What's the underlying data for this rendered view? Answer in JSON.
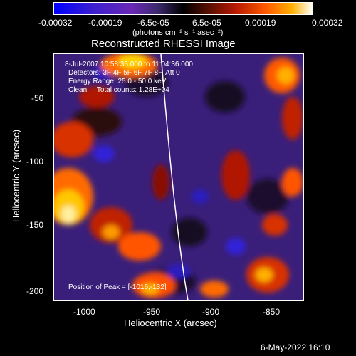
{
  "colorbar": {
    "ticks": [
      "-0.00032",
      "-0.00019",
      "-6.5e-05",
      "6.5e-05",
      "0.00019",
      "0.00032"
    ],
    "unit_label": "(photons cm⁻² s⁻¹ asec⁻²)"
  },
  "title": "Reconstructed RHESSI Image",
  "info": {
    "time": "8-Jul-2007 10:58:36.000 to 11:04:36.000",
    "detectors": "Detectors: 3F 4F 5F 6F 7F 8F, Att 0",
    "energy": "Energy Range: 25.0 - 50.0 keV",
    "clean": "Clean     Total counts: 1.28E+04",
    "peak": "Position of Peak = [-1016,-132]"
  },
  "axes": {
    "xlabel": "Heliocentric X (arcsec)",
    "ylabel": "Heliocentric Y (arcsec)",
    "xticks": [
      "-1000",
      "-950",
      "-900",
      "-850"
    ],
    "yticks": [
      "-50",
      "-100",
      "-150",
      "-200"
    ]
  },
  "footer_timestamp": "6-May-2022 16:10",
  "colors": {
    "background": "#000000",
    "limb_line": "#ffffff"
  }
}
